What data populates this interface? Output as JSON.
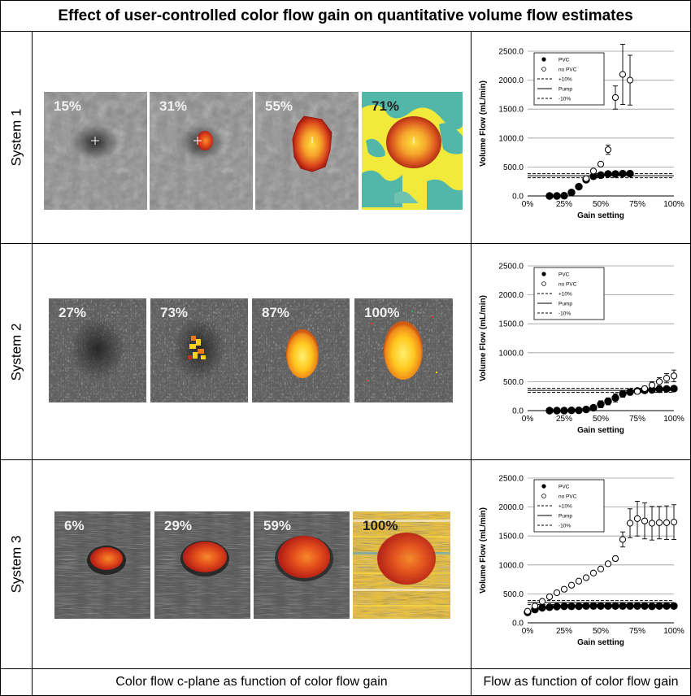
{
  "title": "Effect of user-controlled color flow gain on quantitative volume flow estimates",
  "rows": [
    {
      "label": "System 1",
      "tiles": [
        "15%",
        "31%",
        "55%",
        "71%"
      ]
    },
    {
      "label": "System 2",
      "tiles": [
        "27%",
        "73%",
        "87%",
        "100%"
      ]
    },
    {
      "label": "System 3",
      "tiles": [
        "6%",
        "29%",
        "59%",
        "100%"
      ]
    }
  ],
  "captions": {
    "left": "Color flow c-plane as function of color flow gain",
    "right": "Flow as function of color flow gain"
  },
  "colors": {
    "pvc": "#000000",
    "no_pvc": "#ffffff",
    "background_gray": "#7a7a7a",
    "flow_red": "#c8281e",
    "flow_orange": "#f07a1a",
    "flow_yellow": "#ffd21e",
    "noise_teal": "#52b7a8"
  },
  "chart_data": [
    {
      "type": "scatter",
      "xlabel": "Gain setting",
      "ylabel": "Volume Flow (mL/min)",
      "xlim": [
        0,
        100
      ],
      "ylim": [
        0,
        2500
      ],
      "xticks": [
        "0%",
        "25%",
        "50%",
        "75%",
        "100%"
      ],
      "yticks": [
        "0.0",
        "500.0",
        "1000.0",
        "1500.0",
        "2000.0",
        "2500.0"
      ],
      "legend": [
        "PVC",
        "no PVC",
        "+10%",
        "Pump",
        "-10%"
      ],
      "legend_position": "top-left",
      "pump": 350,
      "series": [
        {
          "name": "PVC",
          "x": [
            15,
            20,
            25,
            30,
            35,
            40,
            45,
            50,
            55,
            60,
            65,
            70
          ],
          "y": [
            0,
            0,
            5,
            60,
            160,
            280,
            340,
            360,
            380,
            380,
            385,
            385
          ],
          "err": [
            0,
            0,
            0,
            0,
            0,
            0,
            0,
            0,
            0,
            0,
            0,
            0
          ]
        },
        {
          "name": "no PVC",
          "x": [
            40,
            45,
            50,
            55,
            60,
            65,
            70
          ],
          "y": [
            300,
            430,
            550,
            800,
            1700,
            2100,
            2000
          ],
          "err": [
            0,
            0,
            0,
            80,
            200,
            520,
            430
          ]
        }
      ]
    },
    {
      "type": "scatter",
      "xlabel": "Gain setting",
      "ylabel": "Volume Flow (mL/min)",
      "xlim": [
        0,
        100
      ],
      "ylim": [
        0,
        2500
      ],
      "xticks": [
        "0%",
        "25%",
        "50%",
        "75%",
        "100%"
      ],
      "yticks": [
        "0.0",
        "500.0",
        "1000.0",
        "1500.0",
        "2000.0",
        "2500.0"
      ],
      "legend": [
        "PVC",
        "no PVC",
        "+10%",
        "Pump",
        "-10%"
      ],
      "legend_position": "top-left",
      "pump": 350,
      "series": [
        {
          "name": "PVC",
          "x": [
            15,
            20,
            25,
            30,
            35,
            40,
            45,
            50,
            55,
            60,
            65,
            70,
            75,
            80,
            85,
            90,
            95,
            100
          ],
          "y": [
            0,
            0,
            0,
            5,
            5,
            20,
            50,
            110,
            160,
            220,
            290,
            320,
            340,
            350,
            360,
            370,
            375,
            380
          ],
          "err": [
            0,
            0,
            0,
            0,
            0,
            0,
            0,
            60,
            60,
            70,
            60,
            50,
            40,
            30,
            30,
            30,
            30,
            30
          ]
        },
        {
          "name": "no PVC",
          "x": [
            75,
            80,
            85,
            90,
            95,
            100
          ],
          "y": [
            330,
            380,
            440,
            500,
            560,
            600
          ],
          "err": [
            40,
            40,
            60,
            70,
            80,
            100
          ]
        }
      ]
    },
    {
      "type": "scatter",
      "xlabel": "Gain setting",
      "ylabel": "Volume Flow (mL/min)",
      "xlim": [
        0,
        100
      ],
      "ylim": [
        0,
        2500
      ],
      "xticks": [
        "0%",
        "25%",
        "50%",
        "75%",
        "100%"
      ],
      "yticks": [
        "0.0",
        "500.0",
        "1000.0",
        "1500.0",
        "2000.0",
        "2500.0"
      ],
      "legend": [
        "PVC",
        "no PVC",
        "+10%",
        "Pump",
        "-10%"
      ],
      "legend_position": "top-left",
      "pump": 350,
      "series": [
        {
          "name": "PVC",
          "x": [
            0,
            5,
            10,
            15,
            20,
            25,
            30,
            35,
            40,
            45,
            50,
            55,
            60,
            65,
            70,
            75,
            80,
            85,
            90,
            95,
            100
          ],
          "y": [
            180,
            230,
            260,
            270,
            280,
            285,
            285,
            285,
            290,
            290,
            290,
            290,
            290,
            290,
            290,
            290,
            290,
            285,
            290,
            290,
            290
          ],
          "err": [
            40,
            30,
            20,
            20,
            20,
            20,
            20,
            20,
            20,
            20,
            20,
            20,
            20,
            20,
            20,
            20,
            20,
            20,
            20,
            20,
            20
          ]
        },
        {
          "name": "no PVC",
          "x": [
            0,
            5,
            10,
            15,
            20,
            25,
            30,
            35,
            40,
            45,
            50,
            55,
            60,
            65,
            70,
            75,
            80,
            85,
            90,
            95,
            100
          ],
          "y": [
            200,
            290,
            370,
            450,
            520,
            580,
            650,
            720,
            780,
            860,
            930,
            1020,
            1110,
            1440,
            1720,
            1800,
            1760,
            1720,
            1730,
            1730,
            1740
          ],
          "err": [
            20,
            20,
            20,
            20,
            20,
            20,
            20,
            20,
            20,
            20,
            30,
            30,
            40,
            130,
            250,
            300,
            310,
            290,
            280,
            290,
            300
          ]
        }
      ]
    }
  ]
}
